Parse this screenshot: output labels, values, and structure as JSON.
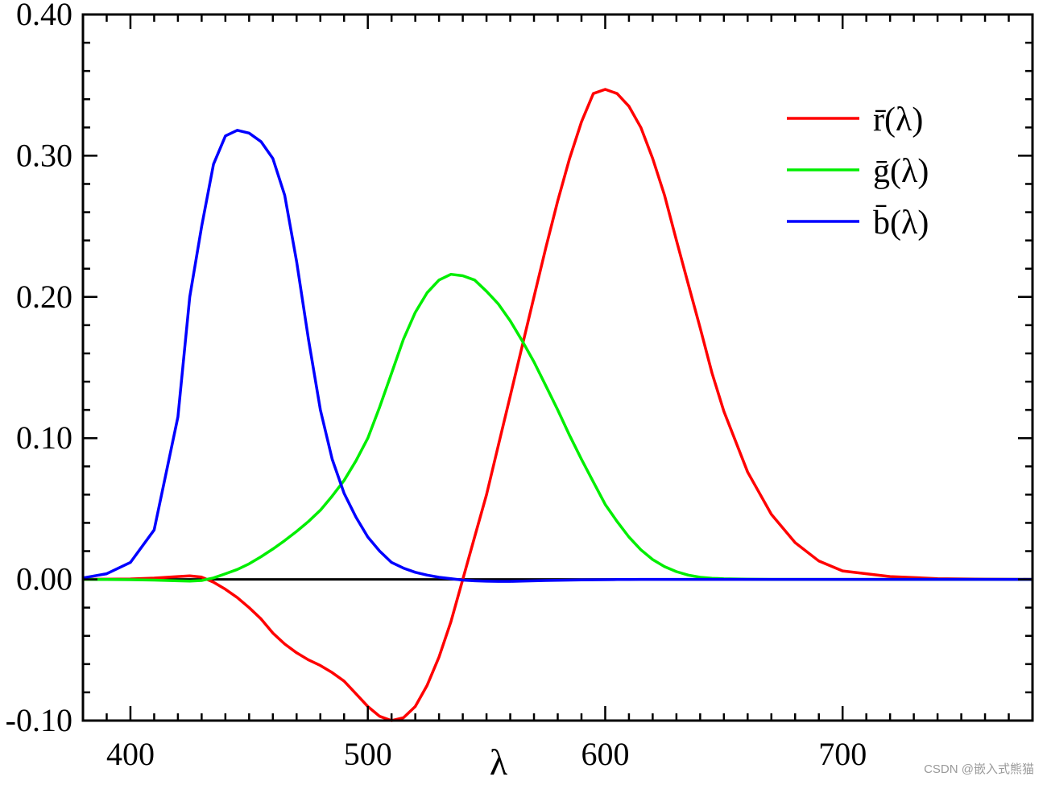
{
  "chart_data": {
    "type": "line",
    "xlabel": "λ",
    "ylabel": "",
    "xlim": [
      380,
      780
    ],
    "ylim": [
      -0.1,
      0.4
    ],
    "x_ticks": [
      400,
      500,
      600,
      700
    ],
    "x_tick_labels": [
      "400",
      "500",
      "600",
      "700"
    ],
    "y_ticks": [
      0.4,
      0.3,
      0.2,
      0.1,
      0.0,
      -0.1
    ],
    "y_tick_labels": [
      "0.40",
      "0.30",
      "0.20",
      "0.10",
      "0.00",
      "-0.10"
    ],
    "grid": false,
    "legend_position": "top-right",
    "x": [
      380,
      390,
      400,
      410,
      420,
      425,
      430,
      435,
      440,
      445,
      450,
      455,
      460,
      465,
      470,
      475,
      480,
      485,
      490,
      495,
      500,
      505,
      510,
      515,
      520,
      525,
      530,
      535,
      540,
      545,
      550,
      555,
      560,
      565,
      570,
      575,
      580,
      585,
      590,
      595,
      600,
      605,
      610,
      615,
      620,
      625,
      630,
      635,
      640,
      645,
      650,
      660,
      670,
      680,
      690,
      700,
      720,
      740,
      760,
      780
    ],
    "series": [
      {
        "name": "r̄(λ)",
        "color": "#ff0000",
        "values": [
          0.0,
          0.0001,
          0.0003,
          0.0009,
          0.002,
          0.0025,
          0.0016,
          -0.002,
          -0.007,
          -0.0129,
          -0.02,
          -0.028,
          -0.038,
          -0.0458,
          -0.052,
          -0.057,
          -0.061,
          -0.066,
          -0.072,
          -0.081,
          -0.09,
          -0.097,
          -0.1,
          -0.098,
          -0.09,
          -0.075,
          -0.055,
          -0.03,
          0.0,
          0.03,
          0.06,
          0.095,
          0.13,
          0.165,
          0.2,
          0.235,
          0.268,
          0.298,
          0.324,
          0.344,
          0.347,
          0.344,
          0.335,
          0.32,
          0.298,
          0.272,
          0.24,
          0.209,
          0.178,
          0.146,
          0.119,
          0.076,
          0.046,
          0.026,
          0.013,
          0.006,
          0.002,
          0.0005,
          0.0001,
          0.0
        ]
      },
      {
        "name": "ḡ(λ)",
        "color": "#00ee00",
        "values": [
          0.0,
          -0.0001,
          -0.0002,
          -0.0005,
          -0.001,
          -0.0012,
          -0.0008,
          0.001,
          0.004,
          0.007,
          0.011,
          0.016,
          0.0215,
          0.0275,
          0.034,
          0.041,
          0.049,
          0.059,
          0.07,
          0.084,
          0.1,
          0.122,
          0.146,
          0.17,
          0.189,
          0.203,
          0.212,
          0.216,
          0.215,
          0.212,
          0.204,
          0.195,
          0.183,
          0.169,
          0.154,
          0.137,
          0.12,
          0.102,
          0.085,
          0.069,
          0.053,
          0.041,
          0.03,
          0.021,
          0.014,
          0.009,
          0.0055,
          0.003,
          0.0015,
          0.0008,
          0.0004,
          0.0001,
          0.0,
          0.0,
          0.0,
          0.0,
          0.0,
          0.0,
          0.0,
          0.0
        ]
      },
      {
        "name": "b̄(λ)",
        "color": "#0000ff",
        "values": [
          0.001,
          0.004,
          0.012,
          0.035,
          0.115,
          0.2,
          0.25,
          0.294,
          0.314,
          0.318,
          0.316,
          0.31,
          0.298,
          0.272,
          0.225,
          0.17,
          0.12,
          0.085,
          0.061,
          0.044,
          0.03,
          0.02,
          0.012,
          0.008,
          0.005,
          0.003,
          0.0015,
          0.0005,
          -0.0005,
          -0.001,
          -0.0013,
          -0.0014,
          -0.0014,
          -0.0012,
          -0.001,
          -0.0008,
          -0.0006,
          -0.0005,
          -0.0004,
          -0.0003,
          -0.0002,
          -0.0001,
          -0.0001,
          0.0,
          0.0,
          0.0,
          0.0,
          0.0,
          0.0,
          0.0,
          0.0,
          0.0,
          0.0,
          0.0,
          0.0,
          0.0,
          0.0,
          0.0,
          0.0,
          0.0
        ]
      }
    ]
  },
  "watermark": "CSDN @嵌入式熊猫"
}
